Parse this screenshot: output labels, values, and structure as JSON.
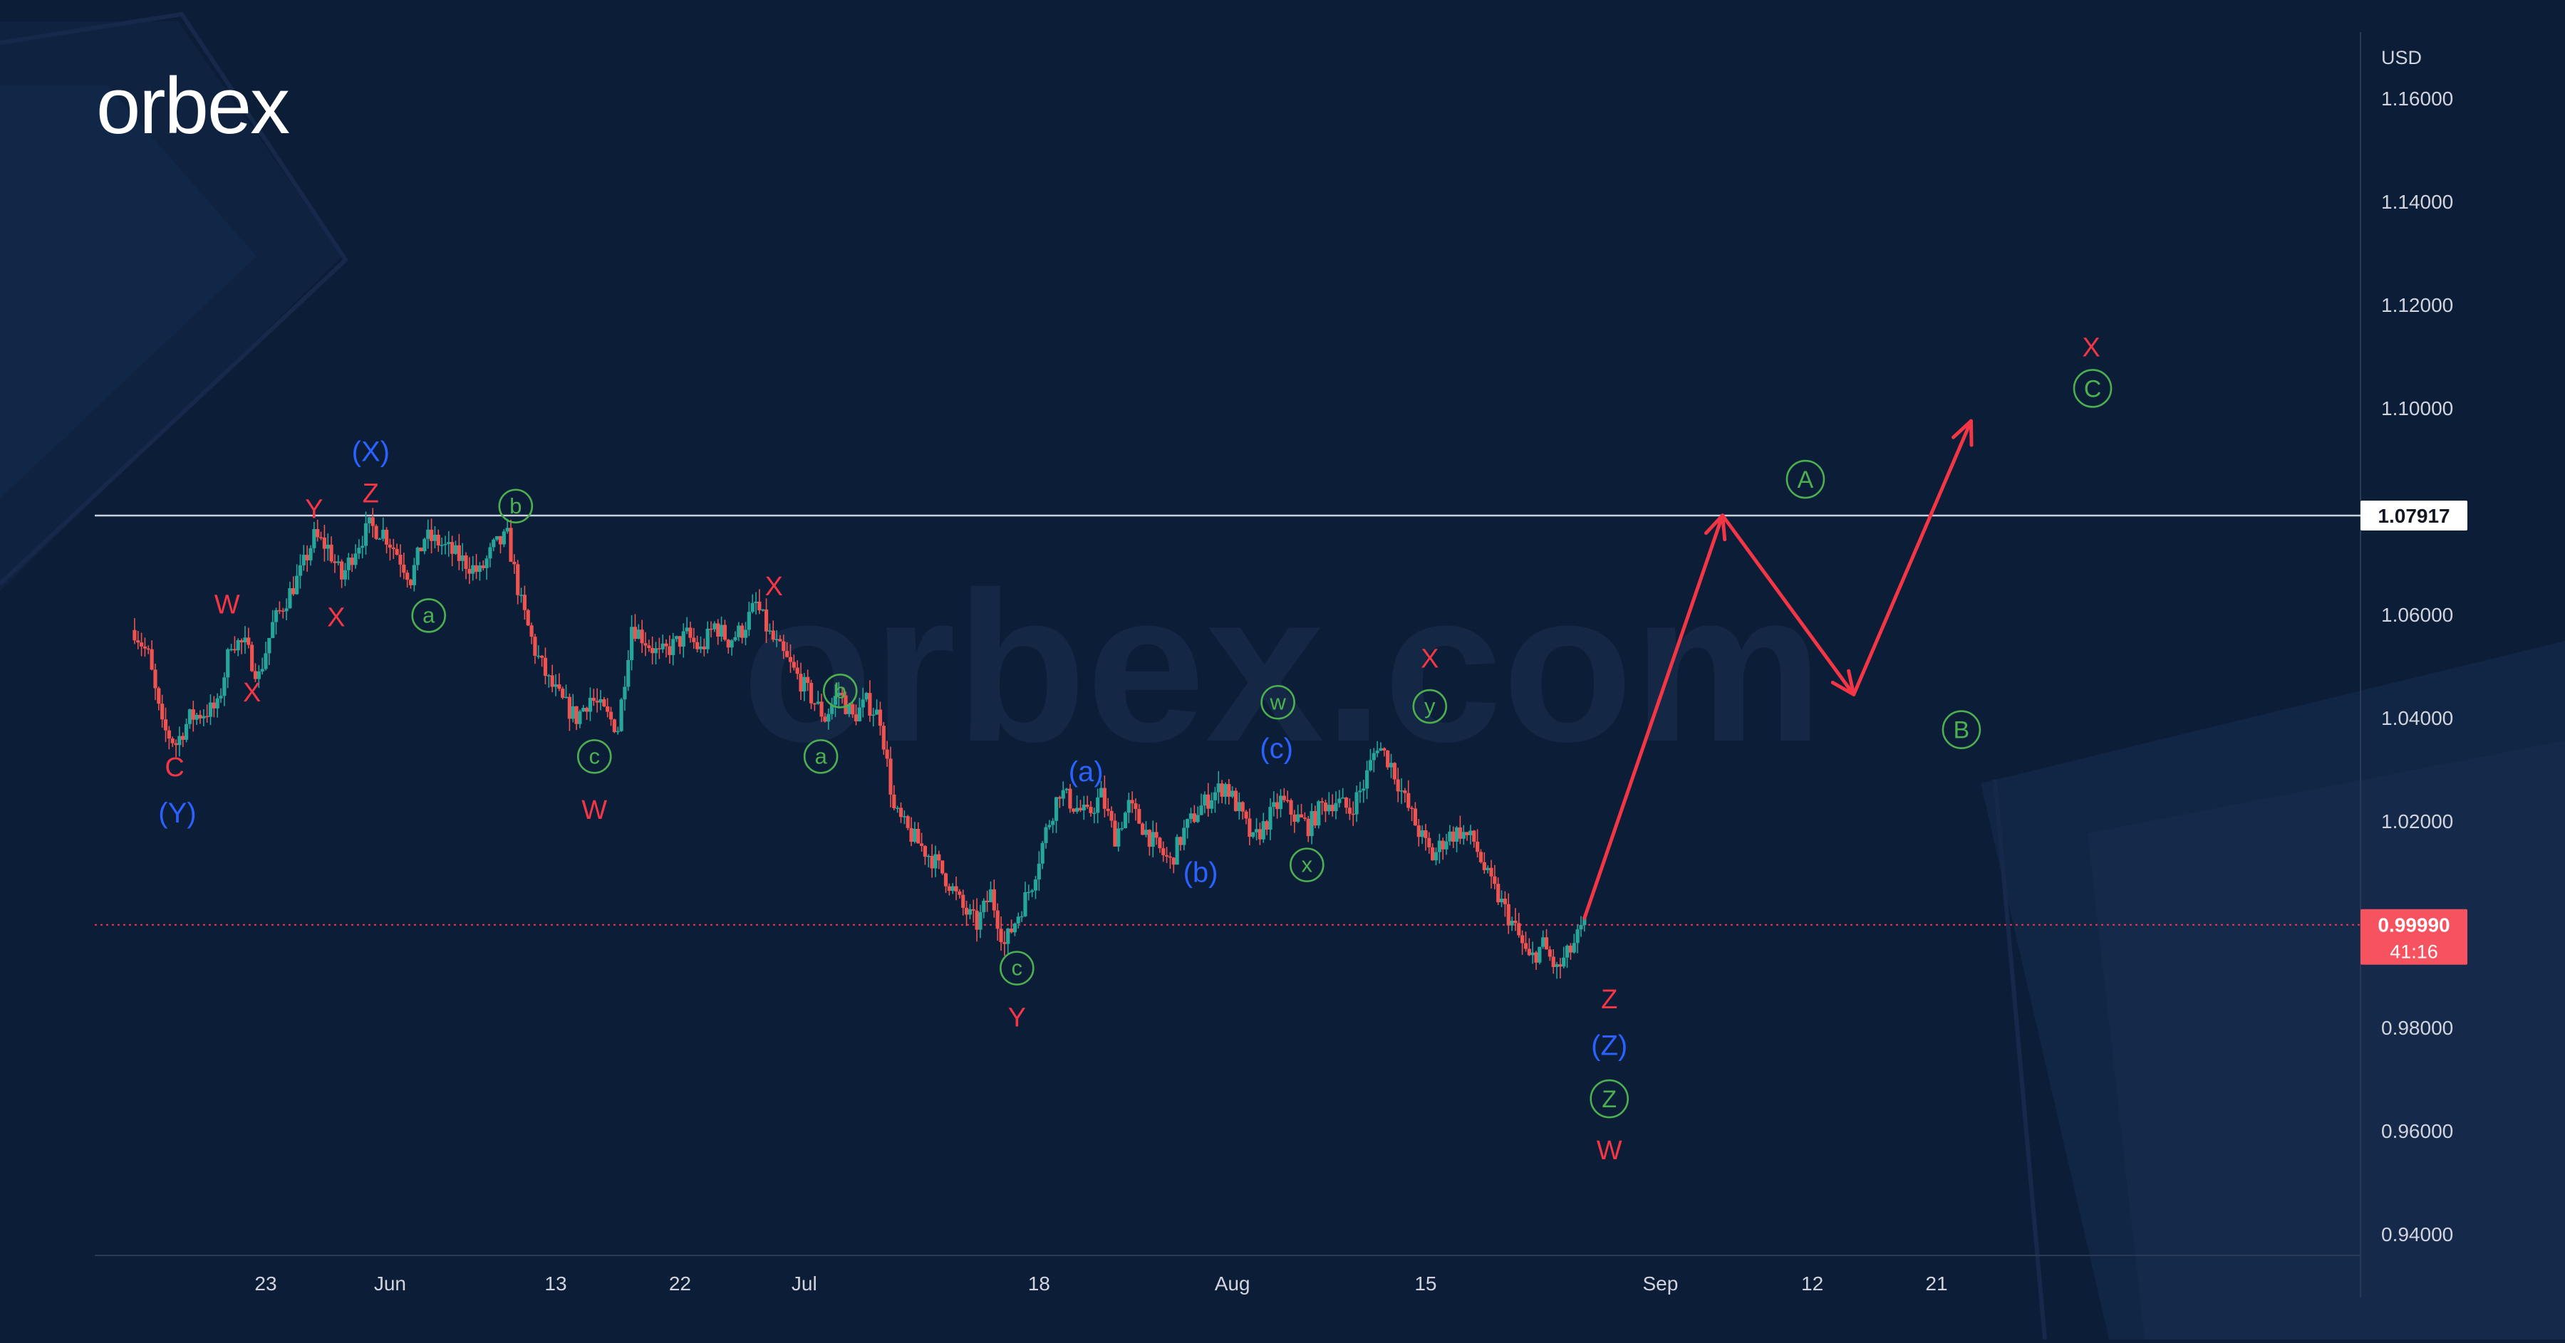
{
  "brand": {
    "logo_text": "orbex",
    "watermark": "orbex.com"
  },
  "chart_data": {
    "type": "candlestick",
    "currency": "USD",
    "ylim": [
      0.928,
      1.171
    ],
    "y_ticks": [
      "1.16000",
      "1.14000",
      "1.12000",
      "1.10000",
      "1.08000",
      "1.06000",
      "1.04000",
      "1.02000",
      "1.00000",
      "0.98000",
      "0.96000",
      "0.94000"
    ],
    "x_ticks": [
      {
        "label": "23",
        "day": 23
      },
      {
        "label": "Jun",
        "day": 32
      },
      {
        "label": "13",
        "day": 44
      },
      {
        "label": "22",
        "day": 53
      },
      {
        "label": "Jul",
        "day": 62
      },
      {
        "label": "18",
        "day": 79
      },
      {
        "label": "Aug",
        "day": 93
      },
      {
        "label": "15",
        "day": 107
      },
      {
        "label": "Sep",
        "day": 124
      },
      {
        "label": "12",
        "day": 135
      },
      {
        "label": "21",
        "day": 144
      }
    ],
    "x_range": [
      13.5,
      151
    ],
    "price_path": [
      [
        13.5,
        1.057
      ],
      [
        14.5,
        1.052
      ],
      [
        15.5,
        1.038
      ],
      [
        16.5,
        1.035
      ],
      [
        17.5,
        1.04
      ],
      [
        18.5,
        1.041
      ],
      [
        19.5,
        1.042
      ],
      [
        20.5,
        1.055
      ],
      [
        21.5,
        1.054
      ],
      [
        22.5,
        1.048
      ],
      [
        23.5,
        1.058
      ],
      [
        24.5,
        1.063
      ],
      [
        25.5,
        1.068
      ],
      [
        26.5,
        1.075
      ],
      [
        27.5,
        1.073
      ],
      [
        28.5,
        1.067
      ],
      [
        29.5,
        1.073
      ],
      [
        30.5,
        1.077
      ],
      [
        31.5,
        1.076
      ],
      [
        32.5,
        1.072
      ],
      [
        33.5,
        1.067
      ],
      [
        34.5,
        1.075
      ],
      [
        35.5,
        1.074
      ],
      [
        36.5,
        1.072
      ],
      [
        37.5,
        1.07
      ],
      [
        38.5,
        1.068
      ],
      [
        39.5,
        1.073
      ],
      [
        40.5,
        1.075
      ],
      [
        41.5,
        1.062
      ],
      [
        42.5,
        1.053
      ],
      [
        43.5,
        1.047
      ],
      [
        44.5,
        1.043
      ],
      [
        45.5,
        1.04
      ],
      [
        46.5,
        1.044
      ],
      [
        47.5,
        1.041
      ],
      [
        48.5,
        1.038
      ],
      [
        49.5,
        1.058
      ],
      [
        50.5,
        1.055
      ],
      [
        51.5,
        1.052
      ],
      [
        52.5,
        1.054
      ],
      [
        53.5,
        1.056
      ],
      [
        54.5,
        1.053
      ],
      [
        55.5,
        1.058
      ],
      [
        56.5,
        1.055
      ],
      [
        57.5,
        1.057
      ],
      [
        58.5,
        1.062
      ],
      [
        59.5,
        1.056
      ],
      [
        60.5,
        1.052
      ],
      [
        61.5,
        1.048
      ],
      [
        62.5,
        1.044
      ],
      [
        63.5,
        1.04
      ],
      [
        64.5,
        1.045
      ],
      [
        65.5,
        1.04
      ],
      [
        66.5,
        1.043
      ],
      [
        67.5,
        1.04
      ],
      [
        68.5,
        1.022
      ],
      [
        69.5,
        1.018
      ],
      [
        70.5,
        1.015
      ],
      [
        71.5,
        1.012
      ],
      [
        72.5,
        1.008
      ],
      [
        73.5,
        1.003
      ],
      [
        74.5,
        1.0
      ],
      [
        75.5,
        1.006
      ],
      [
        76.5,
        0.996
      ],
      [
        77.5,
        1.002
      ],
      [
        78.5,
        1.008
      ],
      [
        79.5,
        1.018
      ],
      [
        80.5,
        1.026
      ],
      [
        81.5,
        1.023
      ],
      [
        82.5,
        1.021
      ],
      [
        83.5,
        1.025
      ],
      [
        84.5,
        1.017
      ],
      [
        85.5,
        1.023
      ],
      [
        86.5,
        1.019
      ],
      [
        87.5,
        1.015
      ],
      [
        88.5,
        1.012
      ],
      [
        89.5,
        1.018
      ],
      [
        90.5,
        1.022
      ],
      [
        91.5,
        1.025
      ],
      [
        92.5,
        1.027
      ],
      [
        93.5,
        1.022
      ],
      [
        94.5,
        1.016
      ],
      [
        95.5,
        1.02
      ],
      [
        96.5,
        1.024
      ],
      [
        97.5,
        1.021
      ],
      [
        98.5,
        1.019
      ],
      [
        99.5,
        1.023
      ],
      [
        100.5,
        1.024
      ],
      [
        101.5,
        1.022
      ],
      [
        102.5,
        1.027
      ],
      [
        103.5,
        1.035
      ],
      [
        104.5,
        1.031
      ],
      [
        105.5,
        1.024
      ],
      [
        106.5,
        1.018
      ],
      [
        107.5,
        1.013
      ],
      [
        108.5,
        1.017
      ],
      [
        109.5,
        1.018
      ],
      [
        110.5,
        1.016
      ],
      [
        111.5,
        1.009
      ],
      [
        112.5,
        1.004
      ],
      [
        113.5,
        0.999
      ],
      [
        114.5,
        0.993
      ],
      [
        115.5,
        0.996
      ],
      [
        116.5,
        0.991
      ],
      [
        117.5,
        0.995
      ],
      [
        118.5,
        0.9999
      ]
    ],
    "resistance_level": {
      "value": 1.07917,
      "label": "1.07917"
    },
    "current_price": {
      "value": 0.9999,
      "label": "0.99990",
      "countdown": "41:16"
    },
    "forecast_path": [
      [
        118.5,
        1.0012
      ],
      [
        128.5,
        1.0792
      ],
      [
        138,
        1.0445
      ],
      [
        146.5,
        1.0975
      ]
    ],
    "wave_labels": [
      {
        "text": "C",
        "day": 16.4,
        "price": 1.0305,
        "color": "red",
        "style": "plain"
      },
      {
        "text": "(Y)",
        "day": 16.6,
        "price": 1.0215,
        "color": "blue",
        "style": "plain"
      },
      {
        "text": "W",
        "day": 20.2,
        "price": 1.062,
        "color": "red",
        "style": "plain"
      },
      {
        "text": "X",
        "day": 22,
        "price": 1.045,
        "color": "red",
        "style": "plain"
      },
      {
        "text": "Y",
        "day": 26.5,
        "price": 1.0805,
        "color": "red",
        "style": "plain"
      },
      {
        "text": "X",
        "day": 28.1,
        "price": 1.0595,
        "color": "red",
        "style": "plain"
      },
      {
        "text": "(X)",
        "day": 30.6,
        "price": 1.0915,
        "color": "blue",
        "style": "plain"
      },
      {
        "text": "Z",
        "day": 30.6,
        "price": 1.0835,
        "color": "red",
        "style": "plain"
      },
      {
        "text": "a",
        "day": 34.8,
        "price": 1.0598,
        "color": "green",
        "style": "circle"
      },
      {
        "text": "b",
        "day": 41.1,
        "price": 1.081,
        "color": "green",
        "style": "circle"
      },
      {
        "text": "c",
        "day": 46.8,
        "price": 1.0325,
        "color": "green",
        "style": "circle"
      },
      {
        "text": "W",
        "day": 46.8,
        "price": 1.0222,
        "color": "red",
        "style": "plain"
      },
      {
        "text": "X",
        "day": 59.8,
        "price": 1.0655,
        "color": "red",
        "style": "plain"
      },
      {
        "text": "b",
        "day": 64.6,
        "price": 1.0452,
        "color": "green",
        "style": "circle"
      },
      {
        "text": "a",
        "day": 63.2,
        "price": 1.0325,
        "color": "green",
        "style": "circle"
      },
      {
        "text": "(a)",
        "day": 82.4,
        "price": 1.0295,
        "color": "blue",
        "style": "plain"
      },
      {
        "text": "(c)",
        "day": 96.2,
        "price": 1.034,
        "color": "blue",
        "style": "plain"
      },
      {
        "text": "w",
        "day": 96.3,
        "price": 1.043,
        "color": "green",
        "style": "circle"
      },
      {
        "text": "(b)",
        "day": 90.7,
        "price": 1.01,
        "color": "blue",
        "style": "plain"
      },
      {
        "text": "x",
        "day": 98.4,
        "price": 1.0115,
        "color": "green",
        "style": "circle"
      },
      {
        "text": "c",
        "day": 77.4,
        "price": 0.9915,
        "color": "green",
        "style": "circle"
      },
      {
        "text": "Y",
        "day": 77.4,
        "price": 0.982,
        "color": "red",
        "style": "plain"
      },
      {
        "text": "X",
        "day": 107.3,
        "price": 1.0515,
        "color": "red",
        "style": "plain"
      },
      {
        "text": "y",
        "day": 107.3,
        "price": 1.0422,
        "color": "green",
        "style": "circle"
      },
      {
        "text": "Z",
        "day": 120.3,
        "price": 0.9855,
        "color": "red",
        "style": "plain"
      },
      {
        "text": "(Z)",
        "day": 120.3,
        "price": 0.9765,
        "color": "blue",
        "style": "plain"
      },
      {
        "text": "Z",
        "day": 120.3,
        "price": 0.9662,
        "color": "green",
        "style": "bigcircle"
      },
      {
        "text": "W",
        "day": 120.3,
        "price": 0.9563,
        "color": "red",
        "style": "plain"
      },
      {
        "text": "A",
        "day": 134.5,
        "price": 1.0862,
        "color": "green",
        "style": "bigcircle"
      },
      {
        "text": "B",
        "day": 145.8,
        "price": 1.0377,
        "color": "green",
        "style": "bigcircle"
      },
      {
        "text": "X",
        "day": 155.2,
        "price": 1.1118,
        "color": "red",
        "style": "plain"
      },
      {
        "text": "C",
        "day": 155.3,
        "price": 1.1038,
        "color": "green",
        "style": "bigcircle"
      }
    ]
  },
  "colors": {
    "background": "#0c1d38",
    "candle_up": "#26a69a",
    "candle_down": "#ef5350",
    "forecast_arrow": "#f23645",
    "label_red": "#f23645",
    "label_blue": "#2962ff",
    "label_green": "#4caf50",
    "axis_text": "#d1d4dc",
    "price_tag": "#f7525f"
  }
}
